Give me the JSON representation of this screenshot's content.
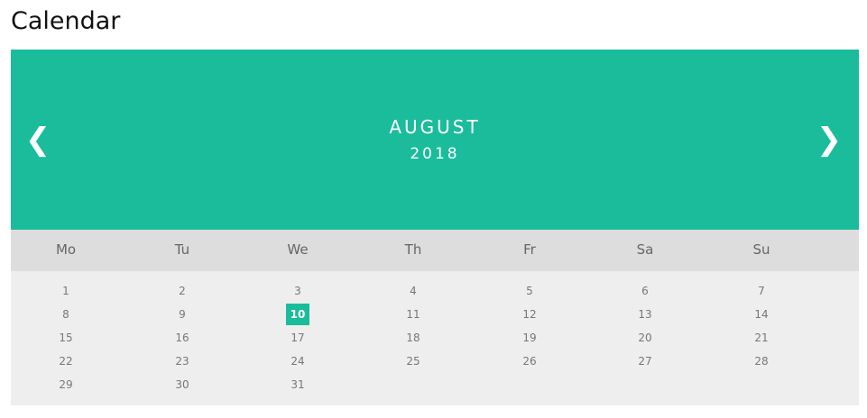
{
  "page": {
    "title": "Calendar"
  },
  "calendar": {
    "month": "AUGUST",
    "year": "2018",
    "prev_icon": "❮",
    "next_icon": "❯",
    "accent_color": "#1abc9c",
    "weekdays": [
      "Mo",
      "Tu",
      "We",
      "Th",
      "Fr",
      "Sa",
      "Su"
    ],
    "weeks": [
      [
        "1",
        "2",
        "3",
        "4",
        "5",
        "6",
        "7"
      ],
      [
        "8",
        "9",
        "10",
        "11",
        "12",
        "13",
        "14"
      ],
      [
        "15",
        "16",
        "17",
        "18",
        "19",
        "20",
        "21"
      ],
      [
        "22",
        "23",
        "24",
        "25",
        "26",
        "27",
        "28"
      ],
      [
        "29",
        "30",
        "31"
      ]
    ],
    "active_day": "10"
  }
}
